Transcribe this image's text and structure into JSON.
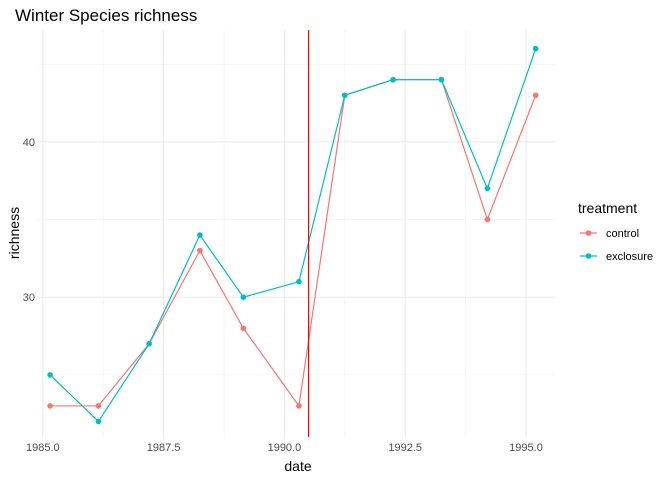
{
  "chart_data": {
    "type": "line",
    "title": "Winter Species richness",
    "xlabel": "date",
    "ylabel": "richness",
    "xlim": [
      1984.9,
      1995.6
    ],
    "ylim": [
      21.0,
      47.2
    ],
    "x_ticks": [
      1985.0,
      1987.5,
      1990.0,
      1992.5,
      1995.0
    ],
    "x_tick_labels": [
      "1985.0",
      "1987.5",
      "1990.0",
      "1992.5",
      "1995.0"
    ],
    "y_ticks": [
      30,
      40
    ],
    "y_tick_labels": [
      "30",
      "40"
    ],
    "grid": true,
    "legend_position": "right",
    "legend_title": "treatment",
    "vertical_line": {
      "x": 1990.5,
      "color": "#ff0000"
    },
    "x": [
      1985.15,
      1986.15,
      1987.2,
      1988.25,
      1989.15,
      1990.3,
      1991.25,
      1992.25,
      1993.25,
      1994.2,
      1995.2
    ],
    "series": [
      {
        "name": "control",
        "color": "#F8766D",
        "values": [
          23,
          23,
          27,
          33,
          28,
          23,
          43,
          44,
          44,
          35,
          43
        ]
      },
      {
        "name": "exclosure",
        "color": "#00BFC4",
        "values": [
          25,
          22,
          27,
          34,
          30,
          31,
          43,
          44,
          44,
          37,
          46
        ]
      }
    ]
  }
}
